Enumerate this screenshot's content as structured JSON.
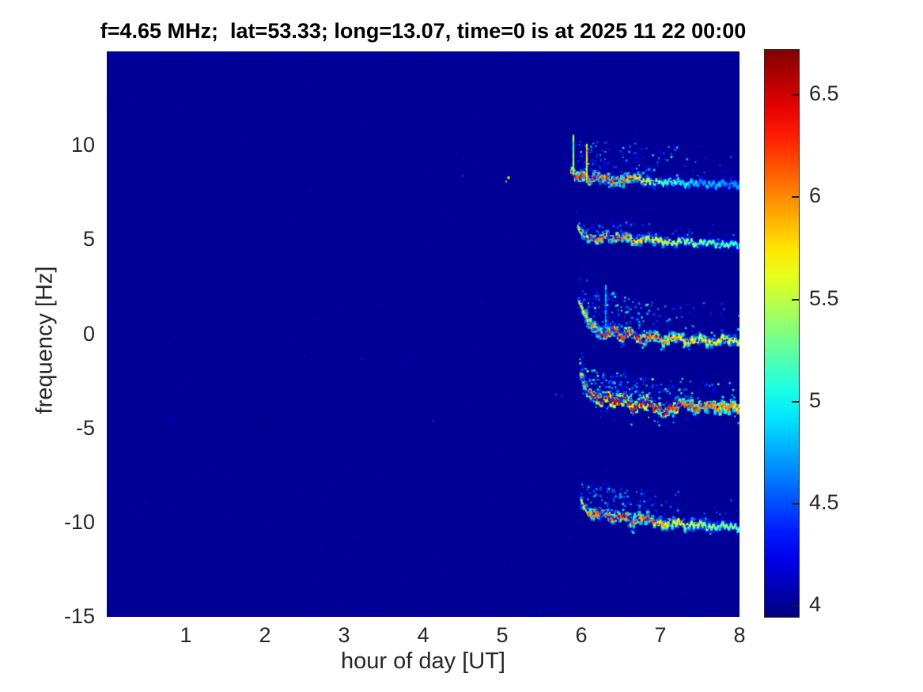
{
  "chart_data": {
    "type": "heatmap",
    "title": "f=4.65 MHz;  lat=53.33; long=13.07, time=0 is at 2025 11 22 00:00",
    "xlabel": "hour of day [UT]",
    "ylabel": "frequency [Hz]",
    "xlim": [
      0,
      8
    ],
    "ylim": [
      -15,
      15
    ],
    "xticks": [
      1,
      2,
      3,
      4,
      5,
      6,
      7,
      8
    ],
    "yticks": [
      10,
      5,
      0,
      -5,
      -10,
      -15
    ],
    "grid": false,
    "colormap": "jet",
    "background_value": 4.0,
    "background_color": "#000096",
    "colorbar": {
      "position": "right",
      "ticks": [
        4,
        4.5,
        5,
        5.5,
        6,
        6.5
      ],
      "range": [
        3.94,
        6.72
      ]
    },
    "description": "Doppler spectrogram; noise floor ~4.0 until hour ~5.9, then five multipath Doppler traces appear near +8, +5, 0, -4 and -10 Hz lasting until hour 8",
    "bands": [
      {
        "name": "trace-plus8hz",
        "seed": 11,
        "start_hour": 5.88,
        "end_hour": 8.0,
        "wiggle_amp": 0.12,
        "ridge": [
          [
            5.88,
            8.6
          ],
          [
            5.93,
            8.25
          ],
          [
            6.0,
            8.5
          ],
          [
            6.08,
            8.2
          ],
          [
            6.18,
            8.35
          ],
          [
            6.3,
            8.3
          ],
          [
            6.42,
            8.05
          ],
          [
            6.55,
            8.2
          ],
          [
            6.68,
            8.3
          ],
          [
            6.8,
            8.1
          ],
          [
            7.0,
            8.05
          ],
          [
            7.2,
            8.1
          ],
          [
            7.35,
            7.95
          ],
          [
            7.5,
            8.05
          ],
          [
            7.65,
            7.9
          ],
          [
            7.8,
            7.98
          ],
          [
            8.0,
            7.9
          ]
        ],
        "values": [
          [
            5.88,
            6.2
          ],
          [
            6.3,
            6.1
          ],
          [
            6.6,
            5.9
          ],
          [
            6.9,
            5.4
          ],
          [
            7.2,
            5.0
          ],
          [
            7.5,
            4.8
          ],
          [
            8.0,
            4.7
          ]
        ],
        "scatter": {
          "above": 1.9,
          "below": 0.35,
          "vmax": 5.3,
          "density": [
            [
              5.9,
              0.5
            ],
            [
              6.1,
              2.6
            ],
            [
              6.5,
              2.2
            ],
            [
              6.9,
              1.2
            ],
            [
              7.3,
              0.5
            ],
            [
              8.0,
              0.3
            ]
          ]
        },
        "spikes": [
          [
            5.9,
            8.5,
            10.6,
            5.3
          ],
          [
            6.07,
            8.2,
            10.1,
            5.6
          ]
        ]
      },
      {
        "name": "trace-plus5hz",
        "seed": 22,
        "start_hour": 5.96,
        "end_hour": 8.0,
        "wiggle_amp": 0.1,
        "ridge": [
          [
            5.96,
            5.75
          ],
          [
            6.02,
            5.3
          ],
          [
            6.1,
            5.15
          ],
          [
            6.2,
            4.95
          ],
          [
            6.3,
            5.25
          ],
          [
            6.45,
            5.05
          ],
          [
            6.55,
            5.2
          ],
          [
            6.7,
            4.9
          ],
          [
            6.85,
            5.1
          ],
          [
            7.0,
            4.95
          ],
          [
            7.15,
            4.8
          ],
          [
            7.3,
            5.0
          ],
          [
            7.45,
            4.75
          ],
          [
            7.6,
            4.9
          ],
          [
            7.75,
            4.7
          ],
          [
            7.9,
            4.8
          ],
          [
            8.0,
            4.72
          ]
        ],
        "values": [
          [
            5.96,
            5.6
          ],
          [
            6.1,
            6.0
          ],
          [
            6.5,
            6.05
          ],
          [
            6.8,
            5.7
          ],
          [
            7.1,
            5.4
          ],
          [
            7.5,
            5.2
          ],
          [
            8.0,
            5.1
          ]
        ],
        "scatter": {
          "above": 0.9,
          "below": 0.3,
          "vmax": 5.0,
          "density": [
            [
              6.0,
              1.2
            ],
            [
              6.4,
              1.5
            ],
            [
              6.8,
              0.8
            ],
            [
              7.2,
              0.4
            ],
            [
              8.0,
              0.25
            ]
          ]
        },
        "spikes": []
      },
      {
        "name": "trace-0hz",
        "seed": 33,
        "start_hour": 5.97,
        "end_hour": 8.0,
        "wiggle_amp": 0.12,
        "ridge": [
          [
            5.97,
            1.9
          ],
          [
            6.03,
            1.1
          ],
          [
            6.1,
            0.6
          ],
          [
            6.2,
            0.15
          ],
          [
            6.3,
            -0.1
          ],
          [
            6.4,
            0.3
          ],
          [
            6.5,
            -0.2
          ],
          [
            6.62,
            0.15
          ],
          [
            6.75,
            -0.35
          ],
          [
            6.9,
            -0.05
          ],
          [
            7.05,
            -0.4
          ],
          [
            7.2,
            -0.1
          ],
          [
            7.35,
            -0.45
          ],
          [
            7.5,
            -0.2
          ],
          [
            7.65,
            -0.5
          ],
          [
            7.8,
            -0.25
          ],
          [
            8.0,
            -0.4
          ]
        ],
        "values": [
          [
            5.97,
            5.4
          ],
          [
            6.1,
            5.9
          ],
          [
            6.3,
            6.25
          ],
          [
            6.7,
            6.3
          ],
          [
            7.0,
            6.0
          ],
          [
            7.3,
            5.7
          ],
          [
            7.7,
            5.6
          ],
          [
            8.0,
            5.5
          ]
        ],
        "scatter": {
          "above": 2.0,
          "below": 0.5,
          "vmax": 5.4,
          "density": [
            [
              6.0,
              1.5
            ],
            [
              6.2,
              3.0
            ],
            [
              6.6,
              2.5
            ],
            [
              7.0,
              1.2
            ],
            [
              7.4,
              0.7
            ],
            [
              8.0,
              0.4
            ]
          ]
        },
        "spikes": [
          [
            6.31,
            0.1,
            2.6,
            4.7
          ]
        ]
      },
      {
        "name": "trace-minus4hz",
        "seed": 44,
        "start_hour": 5.99,
        "end_hour": 8.0,
        "wiggle_amp": 0.14,
        "ridge": [
          [
            5.99,
            -2.1
          ],
          [
            6.05,
            -2.8
          ],
          [
            6.12,
            -3.2
          ],
          [
            6.22,
            -3.5
          ],
          [
            6.32,
            -3.3
          ],
          [
            6.45,
            -3.6
          ],
          [
            6.55,
            -3.35
          ],
          [
            6.65,
            -3.95
          ],
          [
            6.78,
            -3.55
          ],
          [
            6.9,
            -3.75
          ],
          [
            7.05,
            -4.2
          ],
          [
            7.18,
            -3.85
          ],
          [
            7.3,
            -3.65
          ],
          [
            7.45,
            -3.95
          ],
          [
            7.6,
            -3.75
          ],
          [
            7.75,
            -3.9
          ],
          [
            7.9,
            -3.8
          ],
          [
            8.0,
            -3.95
          ]
        ],
        "values": [
          [
            5.99,
            5.6
          ],
          [
            6.1,
            6.3
          ],
          [
            6.3,
            6.55
          ],
          [
            6.8,
            6.5
          ],
          [
            7.2,
            6.2
          ],
          [
            7.6,
            6.0
          ],
          [
            8.0,
            5.9
          ]
        ],
        "scatter": {
          "above": 1.4,
          "below": 0.9,
          "vmax": 5.5,
          "density": [
            [
              6.0,
              3.0
            ],
            [
              6.3,
              4.0
            ],
            [
              6.8,
              3.0
            ],
            [
              7.2,
              1.5
            ],
            [
              7.6,
              0.8
            ],
            [
              8.0,
              0.6
            ]
          ]
        },
        "spikes": []
      },
      {
        "name": "trace-minus10hz",
        "seed": 55,
        "start_hour": 6.0,
        "end_hour": 8.0,
        "wiggle_amp": 0.12,
        "ridge": [
          [
            6.0,
            -8.9
          ],
          [
            6.06,
            -9.4
          ],
          [
            6.15,
            -9.6
          ],
          [
            6.28,
            -9.5
          ],
          [
            6.4,
            -9.8
          ],
          [
            6.52,
            -9.6
          ],
          [
            6.65,
            -10.0
          ],
          [
            6.78,
            -9.7
          ],
          [
            6.9,
            -9.9
          ],
          [
            7.05,
            -10.15
          ],
          [
            7.2,
            -9.95
          ],
          [
            7.35,
            -10.2
          ],
          [
            7.5,
            -10.05
          ],
          [
            7.65,
            -10.3
          ],
          [
            7.8,
            -10.15
          ],
          [
            8.0,
            -10.3
          ]
        ],
        "values": [
          [
            6.0,
            5.5
          ],
          [
            6.15,
            6.15
          ],
          [
            6.5,
            6.2
          ],
          [
            6.9,
            5.9
          ],
          [
            7.2,
            5.6
          ],
          [
            7.6,
            5.3
          ],
          [
            8.0,
            5.2
          ]
        ],
        "scatter": {
          "above": 1.6,
          "below": 0.4,
          "vmax": 5.3,
          "density": [
            [
              6.05,
              1.5
            ],
            [
              6.3,
              2.8
            ],
            [
              6.6,
              2.2
            ],
            [
              7.0,
              0.9
            ],
            [
              7.4,
              0.4
            ],
            [
              8.0,
              0.25
            ]
          ]
        },
        "spikes": []
      }
    ],
    "isolated_points": [
      [
        5.08,
        8.3,
        5.6,
        3
      ],
      [
        5.05,
        8.1,
        5.1,
        2
      ],
      [
        4.5,
        8.4,
        4.5,
        2
      ],
      [
        3.23,
        -1.3,
        4.35,
        2
      ],
      [
        4.13,
        -4.6,
        4.5,
        2
      ],
      [
        4.65,
        -0.9,
        4.25,
        2
      ],
      [
        5.68,
        -3.2,
        4.5,
        2
      ],
      [
        5.75,
        -3.3,
        4.45,
        2
      ]
    ]
  }
}
